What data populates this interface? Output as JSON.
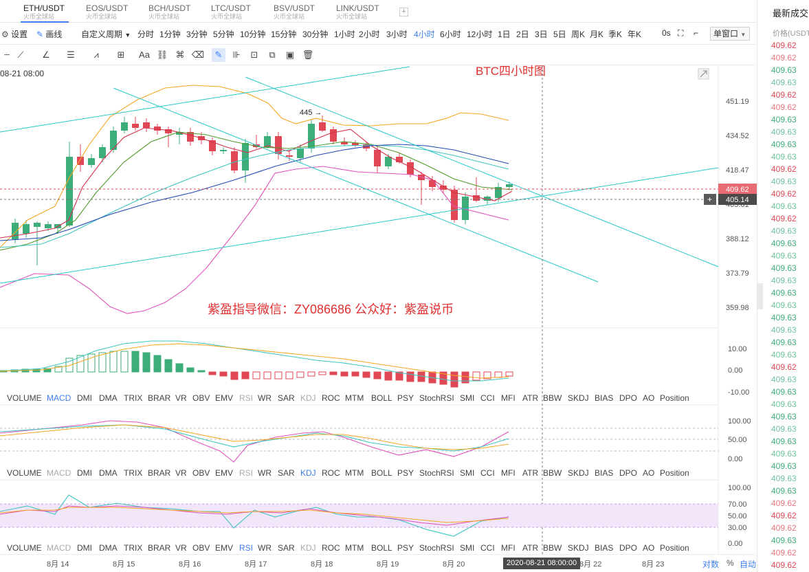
{
  "tabs": [
    {
      "pair": "ETH/USDT",
      "sub": "火币全球站",
      "active": true
    },
    {
      "pair": "EOS/USDT",
      "sub": "火币全球站",
      "active": false
    },
    {
      "pair": "BCH/USDT",
      "sub": "火币全球站",
      "active": false
    },
    {
      "pair": "LTC/USDT",
      "sub": "火币全球站",
      "active": false
    },
    {
      "pair": "BSV/USDT",
      "sub": "火币全球站",
      "active": false
    },
    {
      "pair": "LINK/USDT",
      "sub": "火币全球站",
      "active": false
    }
  ],
  "tab_add": "+",
  "toolbar": {
    "settings_label": "设置",
    "draw_label": "画线",
    "custom_period_label": "自定义周期",
    "periods": [
      "分时",
      "1分钟",
      "3分钟",
      "5分钟",
      "10分钟",
      "15分钟",
      "30分钟",
      "1小时",
      "2小时",
      "3小时",
      "4小时",
      "6小时",
      "12小时",
      "1日",
      "2日",
      "3日",
      "5日",
      "周K",
      "月K",
      "季K",
      "年K"
    ],
    "active_period": "4小时",
    "countdown": "0s",
    "window_mode": "单窗口"
  },
  "draw_tools": [
    "trendline",
    "multi-line",
    "angle",
    "parallel-lines",
    "plus-tool",
    "text-tool",
    "shape-tool",
    "magnet",
    "link-tool",
    "pencil-tool",
    "active-draw",
    "fib-tool",
    "lock-tool",
    "copy-tool",
    "photo-tool",
    "delete-tool"
  ],
  "chart": {
    "timestamp": "08-21 08:00",
    "title": "BTC四小时图",
    "watermark": "紫盈指导微信：ZY086686  公众好：紫盈说币",
    "high_marker": "445",
    "price_axis": [
      "451.19",
      "434.52",
      "418.47",
      "405.01",
      "388.12",
      "373.79",
      "359.98"
    ],
    "current_price": "409.62",
    "crosshair_price": "405.14",
    "crosshair_plus": "+",
    "colors": {
      "up": "#3dae7a",
      "down": "#e04856",
      "ma5": "#d6304a",
      "ma10": "#4f9a2a",
      "ma30": "#3fc5c0",
      "ma60": "#2247b5",
      "boll_upper": "#f5a623",
      "boll_lower": "#e052b9",
      "trend": "#26c6c6"
    }
  },
  "macd": {
    "axis": [
      "10.00",
      "0.00",
      "-10.00"
    ],
    "tabs": [
      "VOLUME",
      "MACD",
      "DMI",
      "DMA",
      "TRIX",
      "BRAR",
      "VR",
      "OBV",
      "EMV",
      "RSI",
      "WR",
      "SAR",
      "KDJ",
      "ROC",
      "MTM",
      "BOLL",
      "PSY",
      "StochRSI",
      "SMI",
      "CCI",
      "MFI",
      "ATR",
      "BBW",
      "SKDJ",
      "BIAS",
      "DPO",
      "AO",
      "Position"
    ],
    "active": "MACD",
    "dim": [
      "RSI",
      "KDJ"
    ]
  },
  "kdj": {
    "axis": [
      "100.00",
      "50.00",
      "0.00"
    ],
    "tabs": [
      "VOLUME",
      "MACD",
      "DMI",
      "DMA",
      "TRIX",
      "BRAR",
      "VR",
      "OBV",
      "EMV",
      "RSI",
      "WR",
      "SAR",
      "KDJ",
      "ROC",
      "MTM",
      "BOLL",
      "PSY",
      "StochRSI",
      "SMI",
      "CCI",
      "MFI",
      "ATR",
      "BBW",
      "SKDJ",
      "BIAS",
      "DPO",
      "AO",
      "Position"
    ],
    "active": "KDJ",
    "dim": [
      "MACD",
      "RSI"
    ]
  },
  "rsi": {
    "axis": [
      "100.00",
      "70.00",
      "50.00",
      "30.00",
      "0.00"
    ],
    "tabs": [
      "VOLUME",
      "MACD",
      "DMI",
      "DMA",
      "TRIX",
      "BRAR",
      "VR",
      "OBV",
      "EMV",
      "RSI",
      "WR",
      "SAR",
      "KDJ",
      "ROC",
      "MTM",
      "BOLL",
      "PSY",
      "StochRSI",
      "SMI",
      "CCI",
      "MFI",
      "ATR",
      "BBW",
      "SKDJ",
      "BIAS",
      "DPO",
      "AO",
      "Position"
    ],
    "active": "RSI",
    "dim": [
      "MACD",
      "KDJ"
    ]
  },
  "timeline": {
    "dates": [
      "8月 14",
      "8月 15",
      "8月 16",
      "8月 17",
      "8月 18",
      "8月 19",
      "8月 20",
      "8月 22",
      "8月 23"
    ],
    "crosshair_date": "2020-08-21 08:00:00",
    "log_label": "对数",
    "percent_label": "%",
    "auto_label": "自动"
  },
  "trades_panel": {
    "title": "最新成交",
    "column": "价格(USDT)",
    "prices": [
      {
        "p": "409.62",
        "c": "down"
      },
      {
        "p": "409.62",
        "c": "down"
      },
      {
        "p": "409.63",
        "c": "up"
      },
      {
        "p": "409.63",
        "c": "up"
      },
      {
        "p": "409.62",
        "c": "down"
      },
      {
        "p": "409.62",
        "c": "down"
      },
      {
        "p": "409.63",
        "c": "up"
      },
      {
        "p": "409.63",
        "c": "up"
      },
      {
        "p": "409.63",
        "c": "up"
      },
      {
        "p": "409.63",
        "c": "up"
      },
      {
        "p": "409.62",
        "c": "down"
      },
      {
        "p": "409.63",
        "c": "up"
      },
      {
        "p": "409.62",
        "c": "down"
      },
      {
        "p": "409.63",
        "c": "up"
      },
      {
        "p": "409.62",
        "c": "down"
      },
      {
        "p": "409.63",
        "c": "up"
      },
      {
        "p": "409.63",
        "c": "up"
      },
      {
        "p": "409.63",
        "c": "up"
      },
      {
        "p": "409.63",
        "c": "up"
      },
      {
        "p": "409.63",
        "c": "up"
      },
      {
        "p": "409.63",
        "c": "up"
      },
      {
        "p": "409.63",
        "c": "up"
      },
      {
        "p": "409.63",
        "c": "up"
      },
      {
        "p": "409.63",
        "c": "up"
      },
      {
        "p": "409.63",
        "c": "up"
      },
      {
        "p": "409.63",
        "c": "up"
      },
      {
        "p": "409.62",
        "c": "down"
      },
      {
        "p": "409.63",
        "c": "up"
      },
      {
        "p": "409.63",
        "c": "up"
      },
      {
        "p": "409.63",
        "c": "up"
      },
      {
        "p": "409.63",
        "c": "up"
      },
      {
        "p": "409.63",
        "c": "up"
      },
      {
        "p": "409.63",
        "c": "up"
      },
      {
        "p": "409.63",
        "c": "up"
      },
      {
        "p": "409.63",
        "c": "up"
      },
      {
        "p": "409.63",
        "c": "up"
      },
      {
        "p": "409.63",
        "c": "up"
      },
      {
        "p": "409.62",
        "c": "down"
      },
      {
        "p": "409.62",
        "c": "down"
      },
      {
        "p": "409.62",
        "c": "down"
      },
      {
        "p": "409.63",
        "c": "up"
      },
      {
        "p": "409.62",
        "c": "down"
      },
      {
        "p": "409.62",
        "c": "down"
      },
      {
        "p": "409.62",
        "c": "down"
      }
    ]
  }
}
